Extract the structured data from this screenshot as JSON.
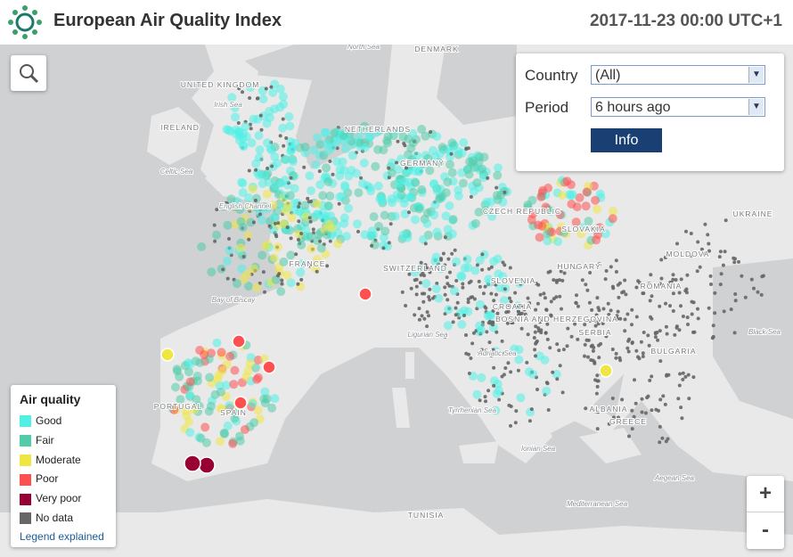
{
  "header": {
    "title": "European Air Quality Index",
    "timestamp": "2017-11-23 00:00 UTC+1"
  },
  "controls": {
    "country_label": "Country",
    "country_value": "(All)",
    "period_label": "Period",
    "period_value": "6 hours ago",
    "info_button": "Info"
  },
  "legend": {
    "title": "Air quality",
    "items": [
      {
        "label": "Good",
        "color": "#50f0e6"
      },
      {
        "label": "Fair",
        "color": "#50ccaa"
      },
      {
        "label": "Moderate",
        "color": "#f0e641"
      },
      {
        "label": "Poor",
        "color": "#ff5050"
      },
      {
        "label": "Very poor",
        "color": "#960032"
      },
      {
        "label": "No data",
        "color": "#666666"
      }
    ],
    "link": "Legend explained"
  },
  "zoom": {
    "in": "+",
    "out": "-"
  },
  "map_labels": [
    "DENMARK",
    "North Sea",
    "UNITED KINGDOM",
    "Irish Sea",
    "IRELAND",
    "Celtic Sea",
    "NETHERLANDS",
    "GERMANY",
    "English Channel",
    "CZECH REPUBLIC",
    "SLOVAKIA",
    "UKRAINE",
    "FRANCE",
    "SWITZERLAND",
    "HUNGARY",
    "MOLDOVA",
    "ROMANIA",
    "Bay of Biscay",
    "SLOVENIA",
    "CROATIA",
    "BOSNIA AND HERZEGOVINA",
    "SERBIA",
    "Black Sea",
    "Ligurian Sea",
    "Adriatic Sea",
    "BULGARIA",
    "PORTUGAL",
    "SPAIN",
    "ALBANIA",
    "Tyrrhenian Sea",
    "GREECE",
    "Ionian Sea",
    "Aegean Sea",
    "Mediterranean Sea",
    "TUNISIA"
  ]
}
